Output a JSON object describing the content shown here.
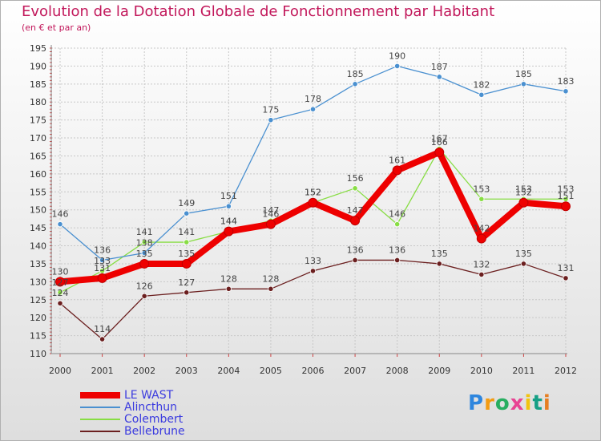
{
  "chart_data": {
    "type": "line",
    "title": "Evolution de la Dotation Globale de Fonctionnement par Habitant",
    "subtitle": "(en € et par an)",
    "xlabel": "",
    "ylabel": "",
    "categories": [
      "2000",
      "2001",
      "2002",
      "2003",
      "2004",
      "2005",
      "2006",
      "2007",
      "2008",
      "2009",
      "2010",
      "2011",
      "2012"
    ],
    "ylim": [
      110,
      195
    ],
    "ytick_step": 5,
    "grid": true,
    "legend_position": "bottom-left",
    "series": [
      {
        "name": "LE WAST",
        "color": "#ee0000",
        "values": [
          130,
          131,
          135,
          135,
          144,
          146,
          152,
          147,
          161,
          166,
          142,
          152,
          151
        ]
      },
      {
        "name": "Alincthun",
        "color": "#4a90d0",
        "values": [
          146,
          136,
          138,
          149,
          151,
          175,
          178,
          185,
          190,
          187,
          182,
          185,
          183
        ]
      },
      {
        "name": "Colembert",
        "color": "#88dd44",
        "values": [
          127,
          133,
          141,
          141,
          144,
          147,
          152,
          156,
          146,
          167,
          153,
          153,
          153
        ]
      },
      {
        "name": "Bellebrune",
        "color": "#6b1f1f",
        "values": [
          124,
          114,
          126,
          127,
          128,
          128,
          133,
          136,
          136,
          135,
          132,
          135,
          131
        ]
      }
    ]
  },
  "brand": {
    "letters": [
      "P",
      "r",
      "o",
      "x",
      "i",
      "t",
      "i"
    ],
    "colors": [
      "#2e86de",
      "#f39c12",
      "#27ae60",
      "#e84393",
      "#f1c40f",
      "#16a085",
      "#e67e22"
    ]
  }
}
